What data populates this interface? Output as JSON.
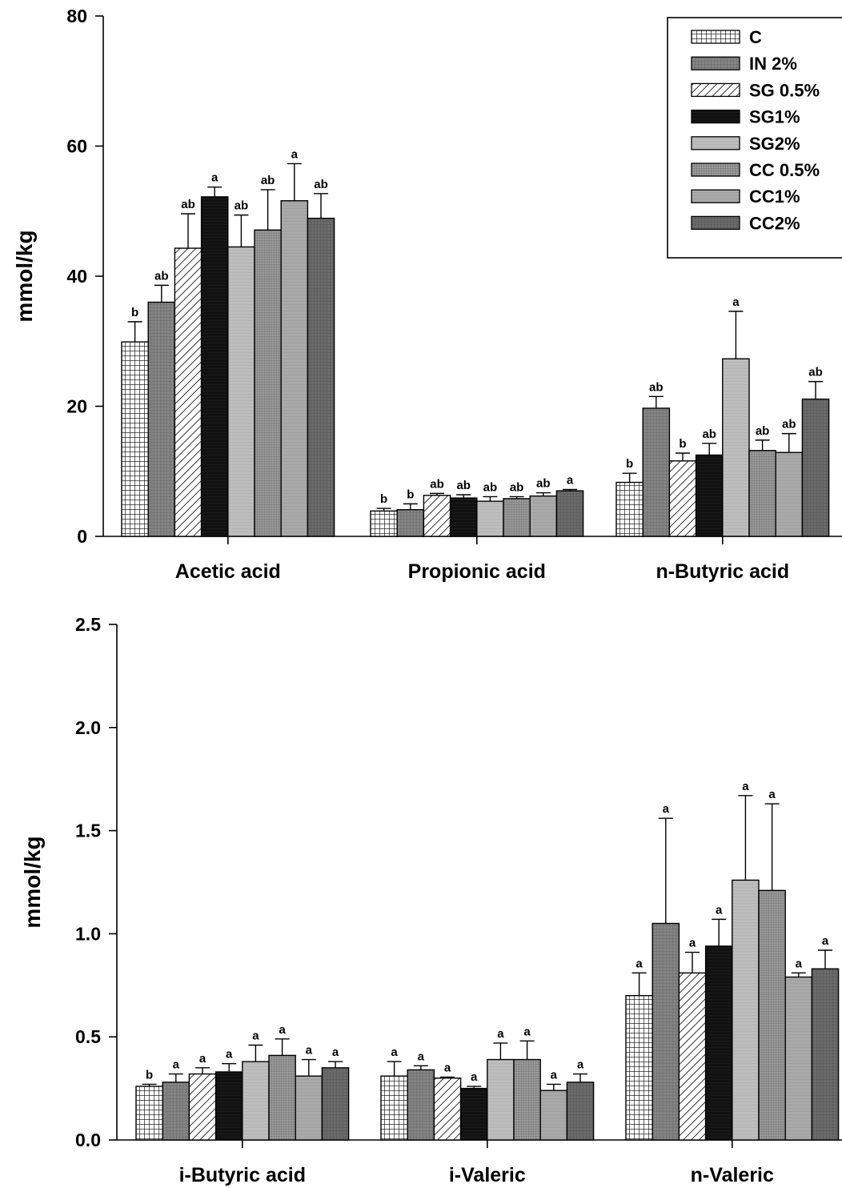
{
  "chart_data": [
    {
      "type": "bar",
      "title": "",
      "xlabel": "",
      "ylabel": "mmol/kg",
      "ylim": [
        0,
        80
      ],
      "yticks": [
        "0",
        "20",
        "40",
        "60",
        "80"
      ],
      "ytick_values": [
        0,
        20,
        40,
        60,
        80
      ],
      "grid": false,
      "legend_position": "top-right",
      "categories": [
        "Acetic acid",
        "Propionic acid",
        "n-Butyric acid"
      ],
      "series": [
        {
          "name": "C",
          "pattern": "grid",
          "values": [
            29.9,
            3.9,
            8.3
          ],
          "errors": [
            3.1,
            0.4,
            1.4
          ],
          "labels": [
            "b",
            "b",
            "b"
          ]
        },
        {
          "name": "IN 2%",
          "pattern": "dark",
          "values": [
            36.0,
            4.1,
            19.7
          ],
          "errors": [
            2.6,
            0.9,
            1.8
          ],
          "labels": [
            "ab",
            "b",
            "ab"
          ]
        },
        {
          "name": "SG 0.5%",
          "pattern": "hatch",
          "values": [
            44.3,
            6.3,
            11.6
          ],
          "errors": [
            5.3,
            0.3,
            1.2
          ],
          "labels": [
            "ab",
            "ab",
            "b"
          ]
        },
        {
          "name": "SG1%",
          "pattern": "black",
          "values": [
            52.2,
            5.9,
            12.5
          ],
          "errors": [
            1.5,
            0.5,
            1.8
          ],
          "labels": [
            "a",
            "ab",
            "ab"
          ]
        },
        {
          "name": "SG2%",
          "pattern": "light",
          "values": [
            44.5,
            5.4,
            27.3
          ],
          "errors": [
            4.9,
            0.7,
            7.3
          ],
          "labels": [
            "ab",
            "ab",
            "a"
          ]
        },
        {
          "name": "CC 0.5%",
          "pattern": "finegrid",
          "values": [
            47.1,
            5.8,
            13.2
          ],
          "errors": [
            6.2,
            0.3,
            1.6
          ],
          "labels": [
            "ab",
            "ab",
            "ab"
          ]
        },
        {
          "name": "CC1%",
          "pattern": "medium",
          "values": [
            51.6,
            6.2,
            12.9
          ],
          "errors": [
            5.7,
            0.5,
            2.9
          ],
          "labels": [
            "a",
            "ab",
            "ab"
          ]
        },
        {
          "name": "CC2%",
          "pattern": "darkest",
          "values": [
            48.9,
            7.0,
            21.1
          ],
          "errors": [
            3.8,
            0.2,
            2.7
          ],
          "labels": [
            "ab",
            "a",
            "ab"
          ]
        }
      ]
    },
    {
      "type": "bar",
      "title": "",
      "xlabel": "",
      "ylabel": "mmol/kg",
      "ylim": [
        0,
        2.5
      ],
      "yticks": [
        "0.0",
        "0.5",
        "1.0",
        "1.5",
        "2.0",
        "2.5"
      ],
      "ytick_values": [
        0,
        0.5,
        1.0,
        1.5,
        2.0,
        2.5
      ],
      "grid": false,
      "categories": [
        "i-Butyric acid",
        "i-Valeric",
        "n-Valeric"
      ],
      "series": [
        {
          "name": "C",
          "pattern": "grid",
          "values": [
            0.26,
            0.31,
            0.7
          ],
          "errors": [
            0.01,
            0.07,
            0.11
          ],
          "labels": [
            "b",
            "a",
            "a"
          ]
        },
        {
          "name": "IN 2%",
          "pattern": "dark",
          "values": [
            0.28,
            0.34,
            1.05
          ],
          "errors": [
            0.04,
            0.02,
            0.51
          ],
          "labels": [
            "a",
            "a",
            "a"
          ]
        },
        {
          "name": "SG 0.5%",
          "pattern": "hatch",
          "values": [
            0.32,
            0.3,
            0.81
          ],
          "errors": [
            0.03,
            0.005,
            0.1
          ],
          "labels": [
            "a",
            "a",
            "a"
          ]
        },
        {
          "name": "SG1%",
          "pattern": "black",
          "values": [
            0.33,
            0.25,
            0.94
          ],
          "errors": [
            0.04,
            0.01,
            0.13
          ],
          "labels": [
            "a",
            "a",
            "a"
          ]
        },
        {
          "name": "SG2%",
          "pattern": "light",
          "values": [
            0.38,
            0.39,
            1.26
          ],
          "errors": [
            0.08,
            0.08,
            0.41
          ],
          "labels": [
            "a",
            "a",
            "a"
          ]
        },
        {
          "name": "CC 0.5%",
          "pattern": "finegrid",
          "values": [
            0.41,
            0.39,
            1.21
          ],
          "errors": [
            0.08,
            0.09,
            0.42
          ],
          "labels": [
            "a",
            "a",
            "a"
          ]
        },
        {
          "name": "CC1%",
          "pattern": "medium",
          "values": [
            0.31,
            0.24,
            0.79
          ],
          "errors": [
            0.08,
            0.03,
            0.02
          ],
          "labels": [
            "a",
            "a",
            "a"
          ]
        },
        {
          "name": "CC2%",
          "pattern": "darkest",
          "values": [
            0.35,
            0.28,
            0.83
          ],
          "errors": [
            0.03,
            0.04,
            0.09
          ],
          "labels": [
            "a",
            "a",
            "a"
          ]
        }
      ]
    }
  ]
}
